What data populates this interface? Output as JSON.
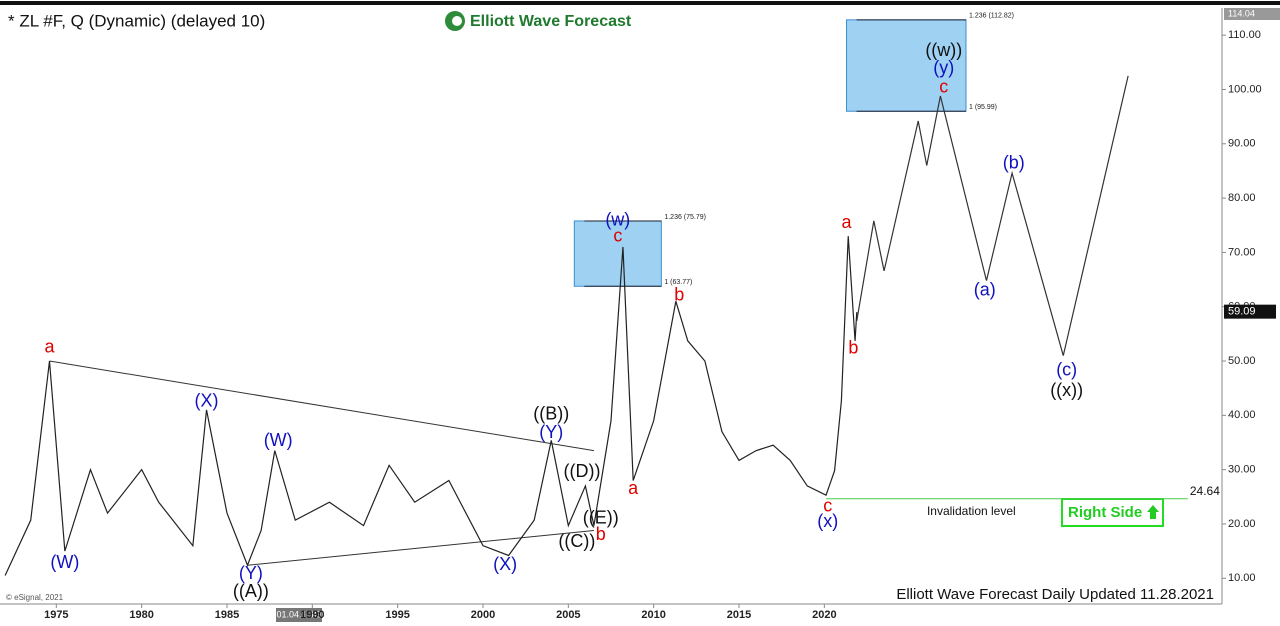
{
  "chart_data": {
    "type": "line",
    "title": "* ZL #F, Q (Dynamic) (delayed 10)",
    "logo": "Elliott Wave Forecast",
    "footer": "Elliott Wave Forecast Daily Updated 11.28.2021",
    "copyright": "© eSignal, 2021",
    "cursor_date": "01.04.1989",
    "top_price": 114.04,
    "last_price": 59.09,
    "xlim": [
      1971.7,
      2043.3
    ],
    "ylim": [
      6,
      115
    ],
    "xticks": [
      1975,
      1980,
      1985,
      1990,
      1995,
      2000,
      2005,
      2010,
      2015,
      2020
    ],
    "yticks": [
      {
        "value": 10,
        "label": "10.00"
      },
      {
        "value": 20,
        "label": "20.00"
      },
      {
        "value": 30,
        "label": "30.00"
      },
      {
        "value": 40,
        "label": "40.00"
      },
      {
        "value": 50,
        "label": "50.00"
      },
      {
        "value": 60,
        "label": "60.00"
      },
      {
        "value": 70,
        "label": "70.00"
      },
      {
        "value": 80,
        "label": "80.00"
      },
      {
        "value": 90,
        "label": "90.00"
      },
      {
        "value": 100,
        "label": "100.00"
      },
      {
        "value": 110,
        "label": "110.00"
      }
    ],
    "series": [
      {
        "name": "ZL #F",
        "color": "#222222",
        "x": [
          1972.0,
          1973.5,
          1974.6,
          1975.5,
          1977.0,
          1978.0,
          1980.0,
          1981.0,
          1983.0,
          1983.8,
          1985.0,
          1986.2,
          1987.0,
          1987.8,
          1989.0,
          1991.0,
          1993.0,
          1994.5,
          1996.0,
          1998.0,
          2000.0,
          2001.5,
          2003.0,
          2004.0,
          2005.0,
          2006.0,
          2006.5,
          2007.5,
          2008.2,
          2008.8,
          2010.0,
          2011.3,
          2012.0,
          2013.0,
          2014.0,
          2015.0,
          2016.0,
          2017.0,
          2018.0,
          2019.0,
          2020.1,
          2020.6,
          2021.0,
          2021.4,
          2021.8,
          2021.9
        ],
        "values": [
          10.5,
          20.7,
          50,
          15,
          30,
          22,
          30,
          24,
          16,
          41,
          22,
          12.4,
          18.8,
          33.5,
          20.7,
          24,
          19.7,
          30.8,
          24,
          28,
          16,
          14.2,
          20.7,
          35.4,
          19.7,
          27,
          19.7,
          39,
          71,
          28,
          39,
          61,
          53.7,
          50,
          37,
          31.7,
          33.5,
          34.5,
          31.7,
          27,
          25.3,
          29.8,
          42.7,
          73,
          53.7,
          59
        ]
      },
      {
        "name": "Projection",
        "color": "#333333",
        "x": [
          2021.9,
          2022.9,
          2023.5,
          2025.5,
          2026.0,
          2026.8,
          2029.5,
          2031.0,
          2034.0,
          2037.8
        ],
        "values": [
          57.4,
          75.8,
          66.6,
          94.2,
          86,
          98.8,
          64.8,
          84.6,
          51,
          102.5
        ]
      }
    ],
    "trendlines": [
      {
        "x": [
          1974.6,
          2006.5
        ],
        "values": [
          50,
          33.5
        ]
      },
      {
        "x": [
          1986.2,
          2006.5
        ],
        "values": [
          12.4,
          18.8
        ]
      }
    ],
    "fib_boxes": [
      {
        "x": [
          2005.35,
          2010.45
        ],
        "levels": [
          {
            "value": 63.77,
            "label": "1 (63.77)"
          },
          {
            "value": 75.79,
            "label": "1.236 (75.79)"
          }
        ]
      },
      {
        "x": [
          2021.3,
          2028.3
        ],
        "levels": [
          {
            "value": 95.99,
            "label": "1 (95.99)"
          },
          {
            "value": 112.82,
            "label": "1.236 (112.82)"
          }
        ]
      }
    ],
    "invalidation": {
      "x": [
        2020.1,
        2041.3
      ],
      "value": 24.64,
      "label": "Invalidation level"
    },
    "badge": "Right Side",
    "annotations": [
      {
        "text": "a",
        "color": "#e00000",
        "x": 1974.6,
        "y": 52.4
      },
      {
        "text": "(W)",
        "color": "#1010c0",
        "x": 1975.5,
        "y": 12.8
      },
      {
        "text": "(X)",
        "color": "#1010c0",
        "x": 1983.8,
        "y": 42.5
      },
      {
        "text": "(W)",
        "color": "#1010c0",
        "x": 1988.0,
        "y": 35.2
      },
      {
        "text": "(Y)",
        "color": "#1010c0",
        "x": 1986.4,
        "y": 10.7
      },
      {
        "text": "((A))",
        "color": "#111111",
        "x": 1986.4,
        "y": 7.4
      },
      {
        "text": "(X)",
        "color": "#1010c0",
        "x": 2001.3,
        "y": 12.4
      },
      {
        "text": "((B))",
        "color": "#111111",
        "x": 2004.0,
        "y": 40.1
      },
      {
        "text": "(Y)",
        "color": "#1010c0",
        "x": 2004.0,
        "y": 36.7
      },
      {
        "text": "((D))",
        "color": "#111111",
        "x": 2005.8,
        "y": 29.5
      },
      {
        "text": "((E))",
        "color": "#111111",
        "x": 2006.9,
        "y": 21
      },
      {
        "text": "((C))",
        "color": "#111111",
        "x": 2005.5,
        "y": 16.6
      },
      {
        "text": "b",
        "color": "#e00000",
        "x": 2006.9,
        "y": 17.9
      },
      {
        "text": "(w)",
        "color": "#1010c0",
        "x": 2007.9,
        "y": 75.8
      },
      {
        "text": "c",
        "color": "#e00000",
        "x": 2007.9,
        "y": 72.9
      },
      {
        "text": "b",
        "color": "#e00000",
        "x": 2011.5,
        "y": 62
      },
      {
        "text": "a",
        "color": "#e00000",
        "x": 2008.8,
        "y": 26.4
      },
      {
        "text": "c",
        "color": "#e00000",
        "x": 2020.2,
        "y": 23.2
      },
      {
        "text": "(x)",
        "color": "#1010c0",
        "x": 2020.2,
        "y": 20.3
      },
      {
        "text": "a",
        "color": "#e00000",
        "x": 2021.3,
        "y": 75.4
      },
      {
        "text": "b",
        "color": "#e00000",
        "x": 2021.7,
        "y": 52.3
      },
      {
        "text": "((w))",
        "color": "#111111",
        "x": 2027.0,
        "y": 107
      },
      {
        "text": "(y)",
        "color": "#1010c0",
        "x": 2027.0,
        "y": 103.8
      },
      {
        "text": "c",
        "color": "#e00000",
        "x": 2027.0,
        "y": 100.3
      },
      {
        "text": "(b)",
        "color": "#1010c0",
        "x": 2031.1,
        "y": 86.3
      },
      {
        "text": "(a)",
        "color": "#1010c0",
        "x": 2029.4,
        "y": 62.9
      },
      {
        "text": "(c)",
        "color": "#1010c0",
        "x": 2034.2,
        "y": 48.2
      },
      {
        "text": "((x))",
        "color": "#111111",
        "x": 2034.2,
        "y": 44.4
      }
    ]
  }
}
